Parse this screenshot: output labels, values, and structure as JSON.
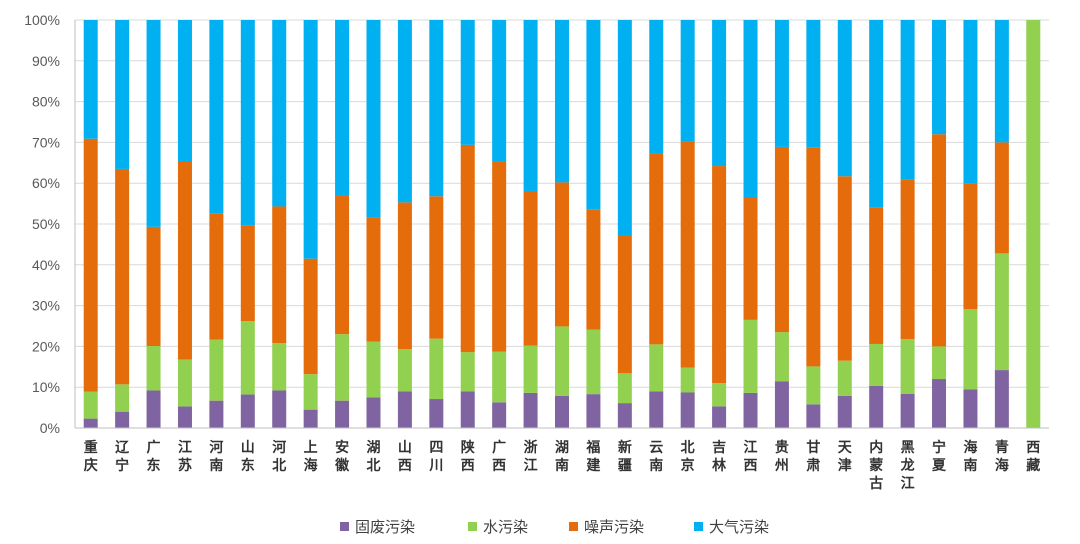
{
  "chart_data": {
    "type": "bar",
    "stacked": true,
    "normalized": true,
    "title": "",
    "xlabel": "",
    "ylabel": "",
    "ylim": [
      0,
      100
    ],
    "yticks": [
      "0%",
      "10%",
      "20%",
      "30%",
      "40%",
      "50%",
      "60%",
      "70%",
      "80%",
      "90%",
      "100%"
    ],
    "grid": true,
    "legend_position": "bottom",
    "categories": [
      "重庆",
      "辽宁",
      "广东",
      "江苏",
      "河南",
      "山东",
      "河北",
      "上海",
      "安徽",
      "湖北",
      "山西",
      "四川",
      "陕西",
      "广西",
      "浙江",
      "湖南",
      "福建",
      "新疆",
      "云南",
      "北京",
      "吉林",
      "江西",
      "贵州",
      "甘肃",
      "天津",
      "内蒙古",
      "黑龙江",
      "宁夏",
      "海南",
      "青海",
      "西藏"
    ],
    "series": [
      {
        "name": "固废污染",
        "color": "#8064a2",
        "values": [
          2.3,
          4.0,
          9.2,
          5.3,
          6.7,
          8.2,
          9.2,
          4.5,
          6.7,
          7.5,
          9.0,
          7.1,
          9.0,
          6.3,
          8.6,
          7.9,
          8.3,
          6.1,
          9.0,
          8.7,
          5.3,
          8.6,
          11.4,
          5.8,
          7.9,
          10.3,
          8.4,
          12.0,
          9.5,
          14.2,
          0
        ]
      },
      {
        "name": "水污染",
        "color": "#92d050",
        "values": [
          6.6,
          6.7,
          10.9,
          11.5,
          15.0,
          18.0,
          11.6,
          8.7,
          16.3,
          13.7,
          10.3,
          14.8,
          9.6,
          12.4,
          11.6,
          17.0,
          15.8,
          7.3,
          11.5,
          6.1,
          5.7,
          17.9,
          12.1,
          9.3,
          8.6,
          10.3,
          13.4,
          8.0,
          19.6,
          28.6,
          100
        ]
      },
      {
        "name": "噪声污染",
        "color": "#e46c0a",
        "values": [
          62.0,
          52.8,
          29.2,
          48.4,
          30.8,
          23.4,
          33.5,
          28.3,
          34.1,
          30.3,
          36.0,
          34.9,
          50.8,
          46.6,
          37.9,
          35.3,
          29.4,
          33.9,
          46.8,
          55.4,
          53.2,
          30.0,
          45.4,
          53.6,
          45.2,
          33.4,
          39.2,
          52.0,
          30.9,
          27.2,
          0
        ]
      },
      {
        "name": "大气污染",
        "color": "#00b0f0",
        "values": [
          29.1,
          36.5,
          50.7,
          34.8,
          47.5,
          50.4,
          45.7,
          58.5,
          42.9,
          48.5,
          44.7,
          43.2,
          30.6,
          34.7,
          41.9,
          39.8,
          46.5,
          52.7,
          32.7,
          29.8,
          35.8,
          43.5,
          31.1,
          31.3,
          38.3,
          46.0,
          39.0,
          28.0,
          40.0,
          30.0,
          0
        ]
      }
    ]
  }
}
